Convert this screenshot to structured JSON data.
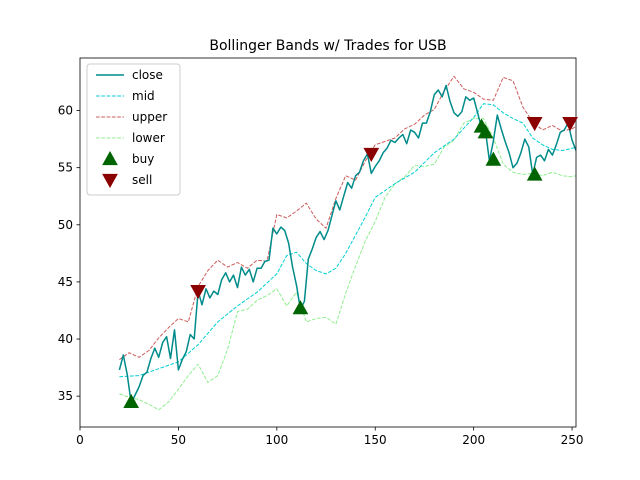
{
  "chart_data": {
    "type": "line",
    "title": "Bollinger Bands w/ Trades for USB",
    "xlabel": "",
    "ylabel": "",
    "xlim": [
      0,
      252
    ],
    "ylim": [
      32.3,
      64.6
    ],
    "xticks": [
      0,
      50,
      100,
      150,
      200,
      250
    ],
    "yticks": [
      35,
      40,
      45,
      50,
      55,
      60
    ],
    "grid": false,
    "legend_position": "upper left",
    "colors": {
      "close": "#008b8b",
      "mid": "#00ced1",
      "upper": "#cd5c5c",
      "lower": "#90ee90",
      "buy": "#006400",
      "sell": "#8b0000"
    },
    "series": [
      {
        "name": "close",
        "style": "solid",
        "x": [
          20,
          22,
          24,
          26,
          28,
          30,
          32,
          34,
          36,
          38,
          40,
          42,
          44,
          46,
          48,
          50,
          52,
          54,
          56,
          58,
          60,
          62,
          64,
          66,
          68,
          70,
          72,
          74,
          76,
          78,
          80,
          82,
          84,
          86,
          88,
          90,
          92,
          94,
          96,
          98,
          100,
          102,
          104,
          106,
          108,
          110,
          112,
          114,
          116,
          118,
          120,
          122,
          124,
          126,
          128,
          130,
          132,
          134,
          136,
          138,
          140,
          142,
          144,
          146,
          148,
          150,
          152,
          154,
          156,
          158,
          160,
          162,
          164,
          166,
          168,
          170,
          172,
          174,
          176,
          178,
          180,
          182,
          184,
          186,
          188,
          190,
          192,
          194,
          196,
          198,
          200,
          202,
          204,
          206,
          208,
          210,
          212,
          214,
          216,
          218,
          220,
          222,
          224,
          226,
          228,
          230,
          232,
          234,
          236,
          238,
          240,
          242,
          244,
          246,
          248,
          250,
          252
        ],
        "y": [
          37.3,
          38.6,
          36.9,
          34.4,
          35.1,
          35.8,
          36.8,
          37.1,
          38.3,
          39.2,
          38.4,
          39.7,
          40.2,
          38.3,
          40.8,
          37.3,
          38.2,
          38.9,
          40.4,
          40.0,
          44.2,
          43.0,
          44.4,
          43.6,
          44.2,
          43.9,
          45.2,
          45.8,
          45.0,
          45.6,
          44.5,
          46.3,
          45.6,
          46.1,
          45.0,
          46.2,
          46.2,
          46.8,
          46.9,
          49.7,
          49.2,
          49.8,
          49.5,
          48.4,
          46.3,
          44.7,
          42.6,
          43.3,
          47.0,
          47.9,
          48.9,
          49.4,
          48.7,
          49.5,
          50.8,
          52.1,
          51.3,
          52.5,
          53.7,
          53.2,
          54.3,
          54.6,
          55.6,
          56.2,
          54.5,
          55.1,
          55.6,
          56.3,
          56.7,
          57.4,
          57.2,
          57.6,
          57.9,
          57.1,
          58.3,
          58.1,
          57.6,
          58.9,
          58.9,
          59.9,
          61.4,
          61.8,
          61.2,
          62.2,
          60.8,
          59.8,
          59.5,
          59.9,
          61.2,
          60.9,
          61.1,
          59.8,
          58.5,
          58.2,
          55.6,
          57.3,
          59.6,
          58.4,
          57.3,
          56.3,
          55.0,
          55.4,
          56.3,
          57.5,
          56.8,
          54.4,
          55.9,
          56.1,
          55.6,
          56.6,
          56.1,
          57.0,
          58.1,
          58.3,
          58.9,
          57.4,
          56.5
        ]
      },
      {
        "name": "mid",
        "style": "dashed",
        "x": [
          20,
          30,
          40,
          50,
          60,
          70,
          80,
          90,
          100,
          105,
          110,
          115,
          120,
          125,
          130,
          135,
          140,
          145,
          150,
          160,
          170,
          180,
          190,
          200,
          205,
          210,
          215,
          220,
          225,
          230,
          235,
          240,
          245,
          250,
          252
        ],
        "y": [
          36.7,
          36.8,
          37.4,
          38.0,
          39.5,
          41.5,
          42.9,
          44.1,
          45.7,
          47.3,
          47.6,
          46.6,
          46.0,
          45.7,
          46.2,
          47.5,
          49.1,
          50.7,
          52.4,
          53.6,
          54.6,
          56.3,
          57.5,
          59.4,
          60.6,
          60.5,
          59.8,
          59.3,
          58.9,
          57.6,
          57.0,
          56.6,
          56.5,
          56.7,
          56.8
        ]
      },
      {
        "name": "upper",
        "style": "dashed",
        "x": [
          20,
          25,
          30,
          35,
          40,
          45,
          50,
          55,
          60,
          65,
          70,
          75,
          80,
          85,
          90,
          95,
          100,
          105,
          110,
          115,
          120,
          125,
          130,
          135,
          140,
          145,
          150,
          155,
          160,
          165,
          170,
          175,
          180,
          185,
          190,
          195,
          200,
          205,
          210,
          215,
          220,
          225,
          230,
          235,
          240,
          245,
          250,
          252
        ],
        "y": [
          38.2,
          38.8,
          38.4,
          39.0,
          40.1,
          41.0,
          41.8,
          41.5,
          44.6,
          46.0,
          46.9,
          46.3,
          46.7,
          46.2,
          46.9,
          46.8,
          50.9,
          50.6,
          51.2,
          51.9,
          50.5,
          49.7,
          52.3,
          54.3,
          53.9,
          55.6,
          57.0,
          57.3,
          57.6,
          58.4,
          58.8,
          59.6,
          60.1,
          61.7,
          63.0,
          61.9,
          61.6,
          61.0,
          60.9,
          62.9,
          62.6,
          60.3,
          59.0,
          58.3,
          58.7,
          58.2,
          58.4,
          58.6
        ]
      },
      {
        "name": "lower",
        "style": "dashed",
        "x": [
          20,
          25,
          30,
          35,
          40,
          45,
          50,
          55,
          60,
          65,
          70,
          75,
          80,
          85,
          90,
          95,
          100,
          105,
          110,
          115,
          120,
          125,
          130,
          135,
          140,
          145,
          150,
          155,
          160,
          165,
          170,
          175,
          180,
          185,
          190,
          195,
          200,
          205,
          210,
          215,
          220,
          225,
          230,
          235,
          240,
          245,
          250,
          252
        ],
        "y": [
          35.2,
          34.9,
          34.7,
          34.3,
          33.8,
          34.5,
          35.6,
          36.8,
          37.8,
          36.2,
          36.8,
          39.1,
          42.4,
          42.6,
          43.4,
          43.8,
          44.4,
          42.9,
          44.1,
          41.5,
          41.8,
          41.9,
          41.3,
          44.0,
          46.4,
          48.6,
          50.3,
          52.4,
          53.6,
          54.2,
          55.2,
          55.1,
          55.3,
          56.8,
          57.4,
          58.9,
          59.3,
          59.3,
          57.6,
          55.3,
          54.6,
          54.4,
          54.5,
          54.3,
          54.6,
          54.3,
          54.2,
          54.3
        ]
      }
    ],
    "markers": [
      {
        "name": "buy",
        "shape": "triangle-up",
        "x": [
          26,
          112,
          204,
          206,
          210,
          231
        ],
        "y": [
          34.5,
          42.7,
          58.6,
          58.1,
          55.7,
          54.4
        ]
      },
      {
        "name": "sell",
        "shape": "triangle-down",
        "x": [
          60,
          148,
          231,
          249
        ],
        "y": [
          44.2,
          56.2,
          58.9,
          58.9
        ]
      }
    ],
    "legend": [
      "close",
      "mid",
      "upper",
      "lower",
      "buy",
      "sell"
    ]
  }
}
